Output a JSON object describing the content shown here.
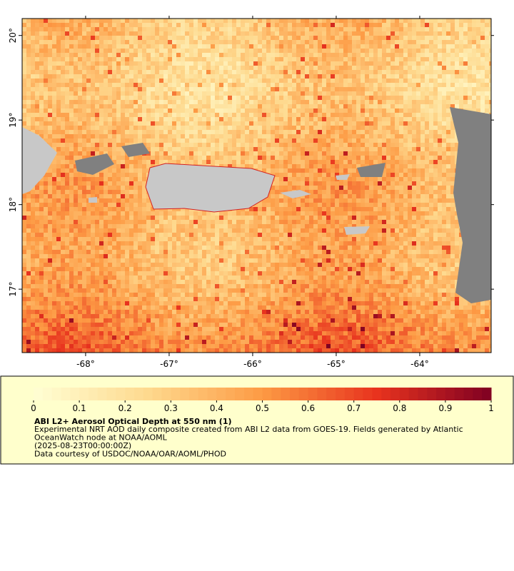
{
  "map": {
    "xlim": [
      -68.76,
      -63.145
    ],
    "ylim": [
      16.25,
      20.2
    ],
    "xticks": [
      {
        "value": -68,
        "label": "-68°"
      },
      {
        "value": -67,
        "label": "-67°"
      },
      {
        "value": -66,
        "label": "-66°"
      },
      {
        "value": -65,
        "label": "-65°"
      },
      {
        "value": -64,
        "label": "-64°"
      }
    ],
    "yticks": [
      {
        "value": 17,
        "label": "17°"
      },
      {
        "value": 18,
        "label": "18°"
      },
      {
        "value": 19,
        "label": "19°"
      },
      {
        "value": 20,
        "label": "20°"
      }
    ]
  },
  "colorbar": {
    "range": [
      0,
      1
    ],
    "steps": 50,
    "colors": [
      "#ffffd4",
      "#fed98e",
      "#fd9a44",
      "#e8331e",
      "#7f0022"
    ],
    "ticks": [
      0,
      0.1,
      0.2,
      0.3,
      0.4,
      0.5,
      0.6,
      0.7,
      0.8,
      0.9,
      1
    ]
  },
  "legend": {
    "title": "ABI L2+ Aerosol Optical Depth at 550 nm (1)",
    "lines": [
      "Experimental NRT AOD daily composite created from ABI L2 data from GOES-19. Fields generated by Atlantic",
      "OceanWatch node at NOAA/AOML",
      "(2025-08-23T00:00:00Z)",
      "Data courtesy of USDOC/NOAA/OAR/AOML/PHOD"
    ]
  }
}
